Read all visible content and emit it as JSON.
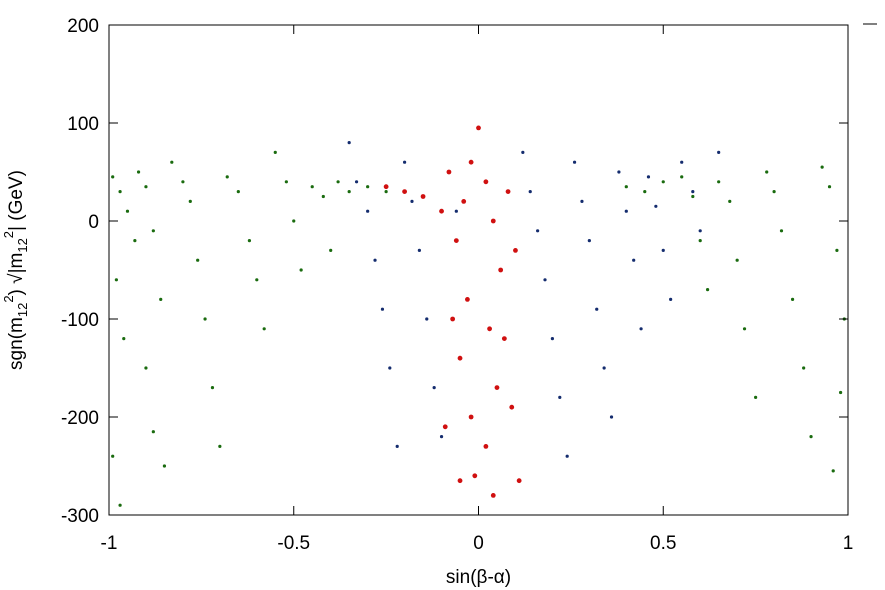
{
  "chart_data": {
    "type": "scatter",
    "title": "",
    "xlabel": "sin(β-α)",
    "ylabel": {
      "prefix": "sgn(m",
      "sub1": "12",
      "sup1": "2",
      "mid": ") √|m",
      "sub2": "12",
      "sup2": "2",
      "suffix": "|  (GeV)"
    },
    "xlim": [
      -1,
      1
    ],
    "ylim": [
      -300,
      200
    ],
    "xticks": [
      {
        "value": -1,
        "label": "-1"
      },
      {
        "value": -0.5,
        "label": "-0.5"
      },
      {
        "value": 0,
        "label": "0"
      },
      {
        "value": 0.5,
        "label": "0.5"
      },
      {
        "value": 1,
        "label": "1"
      }
    ],
    "yticks": [
      {
        "value": -300,
        "label": "-300"
      },
      {
        "value": -200,
        "label": "-200"
      },
      {
        "value": -100,
        "label": "-100"
      },
      {
        "value": 0,
        "label": "0"
      },
      {
        "value": 100,
        "label": "100"
      },
      {
        "value": 200,
        "label": "200"
      }
    ],
    "grid": false,
    "legend": "none",
    "series": [
      {
        "color": "#1a6b0f",
        "marker_radius": 1.6,
        "description": "",
        "points": [
          [
            -0.99,
            45
          ],
          [
            -0.97,
            30
          ],
          [
            -0.95,
            10
          ],
          [
            -0.93,
            -20
          ],
          [
            -0.98,
            -60
          ],
          [
            -0.96,
            -120
          ],
          [
            -0.99,
            -240
          ],
          [
            -0.97,
            -290
          ],
          [
            -0.92,
            50
          ],
          [
            -0.9,
            35
          ],
          [
            -0.88,
            -10
          ],
          [
            -0.86,
            -80
          ],
          [
            -0.9,
            -150
          ],
          [
            -0.88,
            -215
          ],
          [
            -0.85,
            -250
          ],
          [
            -0.83,
            60
          ],
          [
            -0.8,
            40
          ],
          [
            -0.78,
            20
          ],
          [
            -0.76,
            -40
          ],
          [
            -0.74,
            -100
          ],
          [
            -0.72,
            -170
          ],
          [
            -0.7,
            -230
          ],
          [
            -0.68,
            45
          ],
          [
            -0.65,
            30
          ],
          [
            -0.62,
            -20
          ],
          [
            -0.6,
            -60
          ],
          [
            -0.58,
            -110
          ],
          [
            -0.55,
            70
          ],
          [
            -0.52,
            40
          ],
          [
            -0.5,
            0
          ],
          [
            -0.48,
            -50
          ],
          [
            -0.45,
            35
          ],
          [
            -0.42,
            25
          ],
          [
            -0.4,
            -30
          ],
          [
            -0.38,
            40
          ],
          [
            -0.35,
            30
          ],
          [
            0.55,
            45
          ],
          [
            0.58,
            25
          ],
          [
            0.6,
            -20
          ],
          [
            0.62,
            -70
          ],
          [
            0.65,
            40
          ],
          [
            0.68,
            20
          ],
          [
            0.7,
            -40
          ],
          [
            0.72,
            -110
          ],
          [
            0.75,
            -180
          ],
          [
            0.78,
            50
          ],
          [
            0.8,
            30
          ],
          [
            0.82,
            -10
          ],
          [
            0.85,
            -80
          ],
          [
            0.88,
            -150
          ],
          [
            0.9,
            -220
          ],
          [
            0.93,
            55
          ],
          [
            0.95,
            35
          ],
          [
            0.97,
            -30
          ],
          [
            0.99,
            -100
          ],
          [
            0.98,
            -175
          ],
          [
            0.96,
            -255
          ],
          [
            0.4,
            35
          ],
          [
            0.45,
            30
          ],
          [
            0.5,
            40
          ],
          [
            -0.3,
            35
          ],
          [
            -0.25,
            30
          ]
        ]
      },
      {
        "color": "#142c6e",
        "marker_radius": 1.6,
        "description": "",
        "points": [
          [
            -0.35,
            80
          ],
          [
            -0.33,
            40
          ],
          [
            -0.3,
            10
          ],
          [
            -0.28,
            -40
          ],
          [
            -0.26,
            -90
          ],
          [
            -0.24,
            -150
          ],
          [
            -0.22,
            -230
          ],
          [
            -0.2,
            60
          ],
          [
            -0.18,
            20
          ],
          [
            -0.16,
            -30
          ],
          [
            -0.14,
            -100
          ],
          [
            -0.12,
            -170
          ],
          [
            -0.1,
            -220
          ],
          [
            -0.08,
            50
          ],
          [
            -0.06,
            10
          ],
          [
            0.12,
            70
          ],
          [
            0.14,
            30
          ],
          [
            0.16,
            -10
          ],
          [
            0.18,
            -60
          ],
          [
            0.2,
            -120
          ],
          [
            0.22,
            -180
          ],
          [
            0.24,
            -240
          ],
          [
            0.26,
            60
          ],
          [
            0.28,
            20
          ],
          [
            0.3,
            -20
          ],
          [
            0.32,
            -90
          ],
          [
            0.34,
            -150
          ],
          [
            0.36,
            -200
          ],
          [
            0.38,
            50
          ],
          [
            0.4,
            10
          ],
          [
            0.42,
            -40
          ],
          [
            0.44,
            -110
          ],
          [
            0.46,
            45
          ],
          [
            0.48,
            15
          ],
          [
            0.5,
            -30
          ],
          [
            0.52,
            -80
          ],
          [
            0.55,
            60
          ],
          [
            0.58,
            30
          ],
          [
            0.6,
            -10
          ],
          [
            0.65,
            70
          ]
        ]
      },
      {
        "color": "#d01010",
        "marker_radius": 2.4,
        "description": "",
        "points": [
          [
            0.0,
            95
          ],
          [
            -0.02,
            60
          ],
          [
            0.02,
            40
          ],
          [
            -0.04,
            20
          ],
          [
            0.04,
            0
          ],
          [
            -0.06,
            -20
          ],
          [
            0.06,
            -50
          ],
          [
            -0.03,
            -80
          ],
          [
            0.03,
            -110
          ],
          [
            -0.05,
            -140
          ],
          [
            0.05,
            -170
          ],
          [
            -0.02,
            -200
          ],
          [
            0.02,
            -230
          ],
          [
            -0.05,
            -265
          ],
          [
            0.04,
            -280
          ],
          [
            -0.08,
            50
          ],
          [
            0.08,
            30
          ],
          [
            -0.1,
            10
          ],
          [
            0.1,
            -30
          ],
          [
            -0.01,
            -260
          ],
          [
            0.11,
            -265
          ],
          [
            -0.2,
            30
          ],
          [
            -0.15,
            25
          ],
          [
            -0.25,
            35
          ],
          [
            0.07,
            -120
          ],
          [
            -0.07,
            -100
          ],
          [
            0.09,
            -190
          ],
          [
            -0.09,
            -210
          ]
        ]
      }
    ]
  }
}
